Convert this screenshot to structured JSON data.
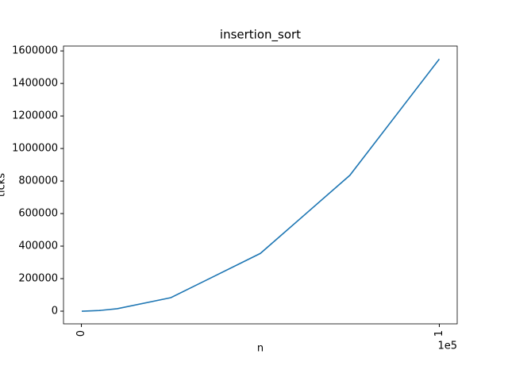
{
  "chart_data": {
    "type": "line",
    "title": "insertion_sort",
    "x_label": "n",
    "y_label": "ticks",
    "x_offset_label": "1e5",
    "x": [
      100,
      1000,
      5000,
      10000,
      25000,
      50000,
      75000,
      100000
    ],
    "series": [
      {
        "name": "insertion_sort",
        "color": "#1f77b4",
        "values": [
          0,
          500,
          4000,
          15000,
          83000,
          355000,
          835000,
          1550000
        ]
      }
    ],
    "xlim": [
      -5000,
      105000
    ],
    "xticks": [
      0,
      {
        "value": 100000,
        "label": "1"
      }
    ],
    "ylim": [
      -78000,
      1630000
    ],
    "yticks": [
      0,
      200000,
      400000,
      600000,
      800000,
      1000000,
      1200000,
      1400000,
      1600000
    ]
  }
}
